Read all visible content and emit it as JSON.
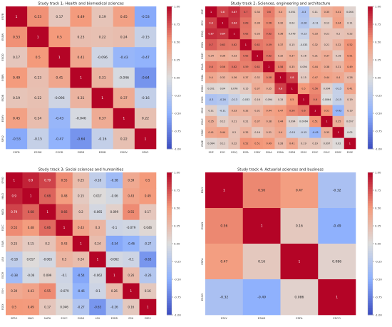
{
  "chart_data": [
    {
      "type": "heatmap",
      "title": "Study track 1: Health and biomedical sciences",
      "labels": [
        "ESFB",
        "ESEW",
        "ESOD",
        "ESBR",
        "ESDB",
        "ESMV",
        "SRV2"
      ],
      "values": [
        [
          1,
          0.53,
          0.17,
          0.49,
          0.19,
          0.45,
          -0.53
        ],
        [
          0.53,
          1,
          0.5,
          0.23,
          0.22,
          0.24,
          -0.15
        ],
        [
          0.17,
          0.5,
          1,
          0.41,
          -0.096,
          -0.43,
          -0.47
        ],
        [
          0.49,
          0.23,
          0.41,
          1,
          0.31,
          -0.046,
          -0.64
        ],
        [
          0.19,
          0.22,
          -0.096,
          0.31,
          1,
          0.37,
          -0.16
        ],
        [
          0.45,
          0.24,
          -0.43,
          -0.046,
          0.37,
          1,
          0.22
        ],
        [
          -0.53,
          -0.15,
          -0.47,
          -0.64,
          -0.16,
          0.22,
          1
        ]
      ],
      "colorbar": {
        "min": -1,
        "max": 1,
        "ticks": [
          "1.00",
          "0.75",
          "0.50",
          "0.25",
          "0.00",
          "-0.25",
          "-0.50",
          "-0.75",
          "-1.00"
        ]
      }
    },
    {
      "type": "heatmap",
      "title": "Study track 2: Sciences, engineering and architecture",
      "labels": [
        "ESIP",
        "ESYI",
        "ESSQ",
        "ESFA",
        "ESMY",
        "ESAA",
        "ESMA",
        "ESRM",
        "ESOS",
        "ESSC",
        "ESUC",
        "ESMC",
        "ESGE"
      ],
      "values": [
        [
          1,
          0.8,
          0.87,
          0.7,
          0.34,
          0.6,
          0.4,
          0.051,
          -0.3,
          0.11,
          0.35,
          0.41,
          0.064
        ],
        [
          0.8,
          1,
          0.84,
          0.63,
          0.36,
          0.56,
          0.32,
          0.04,
          -0.26,
          -0.11,
          0.12,
          0.44,
          0.11
        ],
        [
          0.87,
          0.84,
          1,
          0.62,
          0.33,
          0.62,
          0.36,
          0.076,
          -0.13,
          0.33,
          0.21,
          0.2,
          0.22
        ],
        [
          0.7,
          0.63,
          0.62,
          1,
          0.62,
          0.59,
          0.37,
          0.15,
          -0.033,
          0.32,
          0.21,
          0.32,
          0.52
        ],
        [
          0.34,
          0.36,
          0.33,
          0.62,
          1,
          0.62,
          0.32,
          0.37,
          0.16,
          0.31,
          0.37,
          0.16,
          0.51
        ],
        [
          0.6,
          0.56,
          0.62,
          0.59,
          0.62,
          1,
          0.58,
          0.35,
          0.094,
          0.44,
          0.38,
          0.31,
          0.49
        ],
        [
          0.4,
          0.32,
          0.36,
          0.37,
          0.32,
          0.58,
          1,
          0.8,
          0.15,
          0.47,
          0.44,
          0.4,
          0.28
        ],
        [
          0.051,
          0.04,
          0.076,
          0.15,
          0.37,
          0.35,
          0.8,
          1,
          0.5,
          0.56,
          0.094,
          -0.15,
          0.41
        ],
        [
          -0.3,
          -0.26,
          -0.13,
          -0.033,
          0.16,
          0.094,
          0.15,
          0.5,
          1,
          0.6,
          0.0064,
          -0.15,
          0.19
        ],
        [
          0.11,
          -0.11,
          0.33,
          0.32,
          0.31,
          0.44,
          0.47,
          0.56,
          0.6,
          1,
          0.51,
          -0.43,
          0.19
        ],
        [
          0.35,
          0.12,
          0.21,
          0.21,
          0.37,
          0.38,
          0.44,
          0.094,
          0.0064,
          0.51,
          1,
          0.35,
          0.097
        ],
        [
          0.41,
          0.44,
          0.2,
          0.32,
          0.16,
          0.31,
          0.4,
          -0.15,
          -0.15,
          -0.43,
          0.35,
          1,
          0.02
        ],
        [
          0.064,
          0.11,
          0.22,
          0.52,
          0.51,
          0.49,
          0.28,
          0.41,
          0.19,
          0.19,
          0.097,
          0.02,
          1
        ]
      ],
      "colorbar": {
        "min": -1,
        "max": 1,
        "ticks": [
          "1.00",
          "0.75",
          "0.50",
          "0.25",
          "0.00",
          "-0.25",
          "-0.50",
          "-0.75",
          "-1.00"
        ]
      }
    },
    {
      "type": "heatmap",
      "title": "Study track 3: Social sciences and humanities",
      "labels": [
        "SPRO",
        "MACI",
        "MATA",
        "ESCC",
        "ESAR",
        "LEU",
        "ESDR",
        "ESH",
        "ESEX"
      ],
      "values": [
        [
          1,
          0.9,
          0.79,
          0.55,
          0.25,
          -0.18,
          -0.38,
          0.39,
          0.5
        ],
        [
          0.9,
          1,
          0.68,
          0.48,
          0.15,
          0.017,
          -0.06,
          0.43,
          0.49
        ],
        [
          0.79,
          0.68,
          1,
          0.66,
          0.2,
          -0.065,
          0.099,
          0.55,
          0.17
        ],
        [
          0.55,
          0.48,
          0.66,
          1,
          0.43,
          0.3,
          -0.1,
          -0.079,
          0.046
        ],
        [
          0.25,
          0.15,
          0.2,
          0.43,
          1,
          0.24,
          -0.54,
          -0.46,
          -0.27
        ],
        [
          -0.18,
          0.017,
          -0.065,
          0.3,
          0.24,
          1,
          -0.062,
          -0.1,
          -0.63
        ],
        [
          -0.38,
          -0.06,
          0.099,
          -0.1,
          -0.54,
          -0.062,
          1,
          0.26,
          -0.26
        ],
        [
          0.39,
          0.43,
          0.55,
          -0.079,
          -0.46,
          -0.1,
          0.26,
          1,
          0.16
        ],
        [
          0.5,
          0.49,
          0.17,
          0.046,
          -0.27,
          -0.63,
          -0.26,
          0.16,
          1
        ]
      ],
      "colorbar": {
        "min": -1,
        "max": 1,
        "ticks": [
          "1.00",
          "0.75",
          "0.50",
          "0.25",
          "0.00",
          "-0.25",
          "-0.50",
          "-0.75",
          "-1.00"
        ]
      }
    },
    {
      "type": "heatmap",
      "title": "Study track 4: Actuarial sciences and business",
      "labels": [
        "ESLY",
        "ESAD",
        "ESFA",
        "ESCO"
      ],
      "values": [
        [
          1,
          0.56,
          0.47,
          -0.32
        ],
        [
          0.56,
          1,
          0.16,
          -0.49
        ],
        [
          0.47,
          0.16,
          1,
          0.086
        ],
        [
          -0.32,
          -0.49,
          0.086,
          1
        ]
      ],
      "colorbar": {
        "min": -1,
        "max": 1,
        "ticks": [
          "1.00",
          "0.75",
          "0.50",
          "0.25",
          "0.00",
          "-0.25",
          "-0.50",
          "-0.75",
          "-1.00"
        ]
      }
    }
  ]
}
